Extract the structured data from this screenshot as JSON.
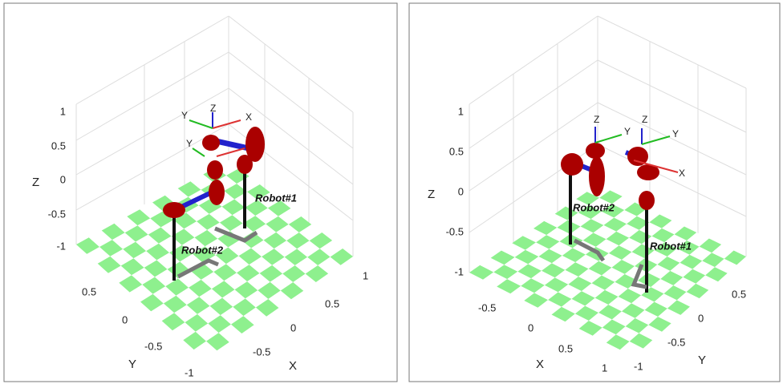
{
  "panels": [
    {
      "axis_labels": {
        "z": "Z",
        "y": "Y",
        "x": "X"
      },
      "z_ticks": [
        "1",
        "0.5",
        "0",
        "-0.5",
        "-1"
      ],
      "y_ticks": [
        "0.5",
        "0",
        "-0.5",
        "-1"
      ],
      "x_ticks": [
        "1",
        "0.5",
        "0",
        "-0.5"
      ],
      "frame_labels": [
        "Y",
        "Z",
        "X",
        "Y"
      ],
      "robots": [
        "Robot#1",
        "Robot#2"
      ]
    },
    {
      "axis_labels": {
        "z": "Z",
        "x": "X",
        "y": "Y"
      },
      "z_ticks": [
        "1",
        "0.5",
        "0",
        "-0.5",
        "-1"
      ],
      "x_ticks": [
        "-0.5",
        "0",
        "0.5",
        "1"
      ],
      "y_ticks": [
        "0.5",
        "0",
        "-0.5",
        "-1"
      ],
      "frame_labels": [
        "Z",
        "Y",
        "Z",
        "Y",
        "X"
      ],
      "robots": [
        "Robot#2",
        "Robot#1"
      ]
    }
  ]
}
